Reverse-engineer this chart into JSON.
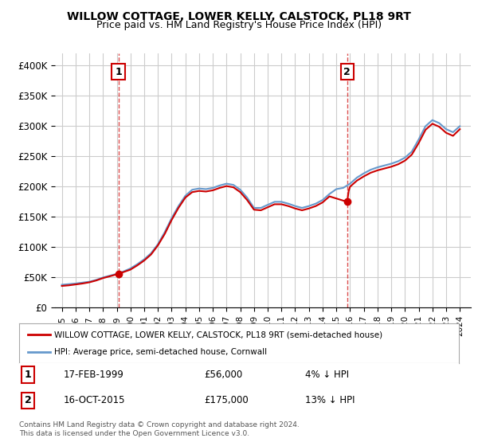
{
  "title": "WILLOW COTTAGE, LOWER KELLY, CALSTOCK, PL18 9RT",
  "subtitle": "Price paid vs. HM Land Registry's House Price Index (HPI)",
  "ylabel_ticks": [
    "£0",
    "£50K",
    "£100K",
    "£150K",
    "£200K",
    "£250K",
    "£300K",
    "£350K",
    "£400K"
  ],
  "ytick_values": [
    0,
    50000,
    100000,
    150000,
    200000,
    250000,
    300000,
    350000,
    400000
  ],
  "ylim": [
    0,
    420000
  ],
  "sale1_date": "17-FEB-1999",
  "sale1_price": 56000,
  "sale1_label": "4% ↓ HPI",
  "sale2_date": "16-OCT-2015",
  "sale2_price": 175000,
  "sale2_label": "13% ↓ HPI",
  "sale1_x": 1999.12,
  "sale2_x": 2015.79,
  "legend_line1": "WILLOW COTTAGE, LOWER KELLY, CALSTOCK, PL18 9RT (semi-detached house)",
  "legend_line2": "HPI: Average price, semi-detached house, Cornwall",
  "footnote": "Contains HM Land Registry data © Crown copyright and database right 2024.\nThis data is licensed under the Open Government Licence v3.0.",
  "hpi_color": "#6699cc",
  "price_color": "#cc0000",
  "dashed_color": "#cc0000",
  "background_color": "#ffffff",
  "grid_color": "#cccccc",
  "table_label1": "1",
  "table_label2": "2",
  "xlim_left": 1994.5,
  "xlim_right": 2024.8
}
